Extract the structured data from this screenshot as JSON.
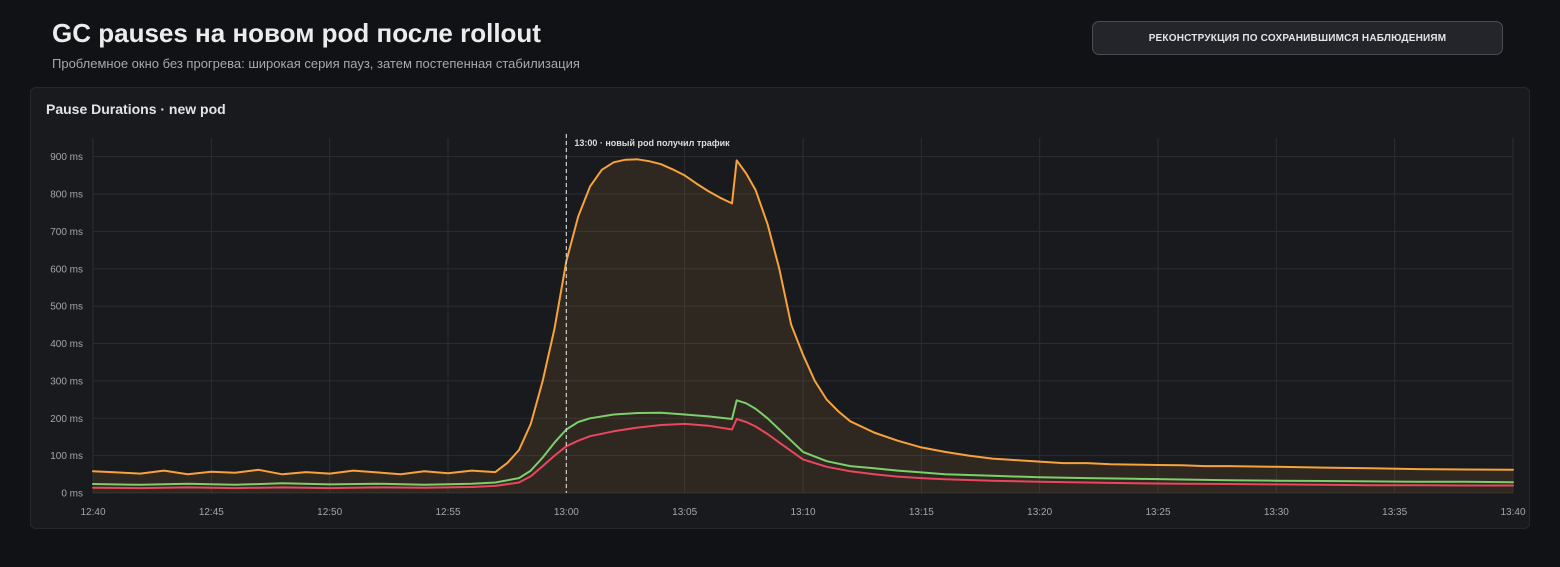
{
  "header": {
    "title": "GC pauses на новом pod после rollout",
    "subtitle": "Проблемное окно без прогрева: широкая серия пауз, затем постепенная стабилизация",
    "badge_label": "РЕКОНСТРУКЦИЯ ПО СОХРАНИВШИМСЯ НАБЛЮДЕНИЯМ"
  },
  "panel": {
    "title": "Pause Durations · new pod"
  },
  "chart_data": {
    "type": "area",
    "title": "Pause Durations · new pod",
    "xlabel": "",
    "ylabel": "",
    "x_ticks": [
      "12:40",
      "12:45",
      "12:50",
      "12:55",
      "13:00",
      "13:05",
      "13:10",
      "13:15",
      "13:20",
      "13:25",
      "13:30",
      "13:35",
      "13:40"
    ],
    "y_ticks": [
      "0 ms",
      "100 ms",
      "200 ms",
      "300 ms",
      "400 ms",
      "500 ms",
      "600 ms",
      "700 ms",
      "800 ms",
      "900 ms"
    ],
    "xlim_minutes": [
      0,
      60
    ],
    "ylim": [
      0,
      950
    ],
    "grid": true,
    "annotation": {
      "x_minute": 20,
      "label": "13:00 · новый pod получил трафик"
    },
    "series": [
      {
        "color": "#f7a23b",
        "fill": true,
        "points": [
          [
            0,
            58
          ],
          [
            1,
            55
          ],
          [
            2,
            52
          ],
          [
            3,
            60
          ],
          [
            4,
            50
          ],
          [
            5,
            57
          ],
          [
            6,
            54
          ],
          [
            7,
            62
          ],
          [
            8,
            50
          ],
          [
            9,
            56
          ],
          [
            10,
            52
          ],
          [
            11,
            60
          ],
          [
            12,
            55
          ],
          [
            13,
            50
          ],
          [
            14,
            58
          ],
          [
            15,
            53
          ],
          [
            16,
            60
          ],
          [
            17,
            56
          ],
          [
            17.5,
            80
          ],
          [
            18,
            115
          ],
          [
            18.5,
            185
          ],
          [
            19,
            300
          ],
          [
            19.5,
            440
          ],
          [
            20,
            620
          ],
          [
            20.5,
            740
          ],
          [
            21,
            820
          ],
          [
            21.5,
            865
          ],
          [
            22,
            885
          ],
          [
            22.5,
            892
          ],
          [
            23,
            893
          ],
          [
            23.5,
            888
          ],
          [
            24,
            880
          ],
          [
            24.5,
            866
          ],
          [
            25,
            850
          ],
          [
            25.5,
            828
          ],
          [
            26,
            808
          ],
          [
            26.5,
            790
          ],
          [
            27,
            775
          ],
          [
            27.2,
            890
          ],
          [
            27.6,
            855
          ],
          [
            28,
            810
          ],
          [
            28.5,
            720
          ],
          [
            29,
            600
          ],
          [
            29.5,
            450
          ],
          [
            30,
            370
          ],
          [
            30.5,
            300
          ],
          [
            31,
            250
          ],
          [
            31.5,
            218
          ],
          [
            32,
            192
          ],
          [
            33,
            162
          ],
          [
            34,
            140
          ],
          [
            35,
            122
          ],
          [
            36,
            110
          ],
          [
            37,
            100
          ],
          [
            38,
            92
          ],
          [
            39,
            88
          ],
          [
            40,
            84
          ],
          [
            41,
            80
          ],
          [
            42,
            80
          ],
          [
            43,
            77
          ],
          [
            44,
            76
          ],
          [
            45,
            75
          ],
          [
            46,
            74
          ],
          [
            47,
            72
          ],
          [
            48,
            72
          ],
          [
            50,
            70
          ],
          [
            52,
            68
          ],
          [
            54,
            66
          ],
          [
            56,
            64
          ],
          [
            58,
            63
          ],
          [
            60,
            62
          ]
        ]
      },
      {
        "color": "#7ccf6a",
        "fill": false,
        "points": [
          [
            0,
            24
          ],
          [
            2,
            22
          ],
          [
            4,
            25
          ],
          [
            6,
            22
          ],
          [
            8,
            26
          ],
          [
            10,
            23
          ],
          [
            12,
            25
          ],
          [
            14,
            22
          ],
          [
            16,
            25
          ],
          [
            17,
            28
          ],
          [
            18,
            40
          ],
          [
            18.5,
            60
          ],
          [
            19,
            95
          ],
          [
            19.5,
            135
          ],
          [
            20,
            170
          ],
          [
            20.5,
            190
          ],
          [
            21,
            200
          ],
          [
            22,
            210
          ],
          [
            23,
            214
          ],
          [
            24,
            215
          ],
          [
            25,
            210
          ],
          [
            26,
            205
          ],
          [
            27,
            198
          ],
          [
            27.2,
            248
          ],
          [
            27.6,
            240
          ],
          [
            28,
            225
          ],
          [
            28.5,
            200
          ],
          [
            29,
            170
          ],
          [
            29.5,
            140
          ],
          [
            30,
            110
          ],
          [
            31,
            85
          ],
          [
            32,
            72
          ],
          [
            33,
            66
          ],
          [
            34,
            60
          ],
          [
            35,
            55
          ],
          [
            36,
            50
          ],
          [
            38,
            46
          ],
          [
            40,
            42
          ],
          [
            42,
            40
          ],
          [
            44,
            38
          ],
          [
            46,
            36
          ],
          [
            48,
            34
          ],
          [
            50,
            33
          ],
          [
            52,
            32
          ],
          [
            54,
            31
          ],
          [
            56,
            30
          ],
          [
            58,
            30
          ],
          [
            60,
            29
          ]
        ]
      },
      {
        "color": "#e8475f",
        "fill": false,
        "points": [
          [
            0,
            14
          ],
          [
            2,
            13
          ],
          [
            4,
            15
          ],
          [
            6,
            13
          ],
          [
            8,
            15
          ],
          [
            10,
            13
          ],
          [
            12,
            15
          ],
          [
            14,
            14
          ],
          [
            16,
            16
          ],
          [
            17,
            19
          ],
          [
            18,
            28
          ],
          [
            18.5,
            45
          ],
          [
            19,
            72
          ],
          [
            19.5,
            100
          ],
          [
            20,
            125
          ],
          [
            20.5,
            140
          ],
          [
            21,
            152
          ],
          [
            22,
            165
          ],
          [
            23,
            175
          ],
          [
            24,
            182
          ],
          [
            25,
            185
          ],
          [
            26,
            180
          ],
          [
            27,
            170
          ],
          [
            27.2,
            198
          ],
          [
            27.6,
            190
          ],
          [
            28,
            178
          ],
          [
            28.5,
            158
          ],
          [
            29,
            135
          ],
          [
            29.5,
            112
          ],
          [
            30,
            90
          ],
          [
            31,
            70
          ],
          [
            32,
            58
          ],
          [
            33,
            50
          ],
          [
            34,
            44
          ],
          [
            35,
            40
          ],
          [
            36,
            37
          ],
          [
            38,
            33
          ],
          [
            40,
            30
          ],
          [
            42,
            28
          ],
          [
            44,
            26
          ],
          [
            46,
            25
          ],
          [
            48,
            24
          ],
          [
            50,
            23
          ],
          [
            52,
            22
          ],
          [
            54,
            21
          ],
          [
            56,
            21
          ],
          [
            58,
            20
          ],
          [
            60,
            20
          ]
        ]
      }
    ]
  }
}
